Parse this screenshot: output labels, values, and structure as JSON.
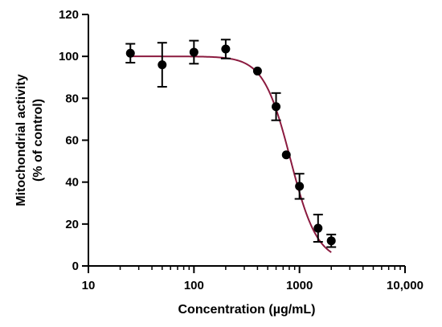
{
  "chart_data": {
    "type": "scatter",
    "title": "",
    "xlabel": "Concentration (µg/mL)",
    "ylabel_lines": [
      "Mitochondrial activity",
      "(% of control)"
    ],
    "x_scale": "log",
    "xlim": [
      10,
      10000
    ],
    "ylim": [
      0,
      120
    ],
    "x_ticks": [
      10,
      100,
      1000,
      10000
    ],
    "x_tick_labels": [
      "10",
      "100",
      "1000",
      "10,000"
    ],
    "y_ticks": [
      0,
      20,
      40,
      60,
      80,
      100,
      120
    ],
    "y_tick_labels": [
      "0",
      "20",
      "40",
      "60",
      "80",
      "100",
      "120"
    ],
    "grid": false,
    "series": [
      {
        "kind": "points_with_error",
        "color": "#000000",
        "points": [
          {
            "x": 25,
            "y": 101.5,
            "err": 4.5
          },
          {
            "x": 50,
            "y": 96,
            "err": 10.5
          },
          {
            "x": 100,
            "y": 102,
            "err": 5.5
          },
          {
            "x": 200,
            "y": 103.5,
            "err": 4.5
          },
          {
            "x": 400,
            "y": 93,
            "err": 0
          },
          {
            "x": 600,
            "y": 76,
            "err": 6.5
          },
          {
            "x": 750,
            "y": 53,
            "err": 0
          },
          {
            "x": 1000,
            "y": 38,
            "err": 6
          },
          {
            "x": 1500,
            "y": 18,
            "err": 6.5
          },
          {
            "x": 2000,
            "y": 12,
            "err": 3
          }
        ]
      },
      {
        "kind": "fit_curve",
        "color": "#8b1a3f",
        "model": "four_parameter_logistic",
        "top": 100,
        "bottom": 2,
        "ec50": 820,
        "hill": 3.4,
        "x_range": [
          25,
          2000
        ]
      }
    ]
  }
}
